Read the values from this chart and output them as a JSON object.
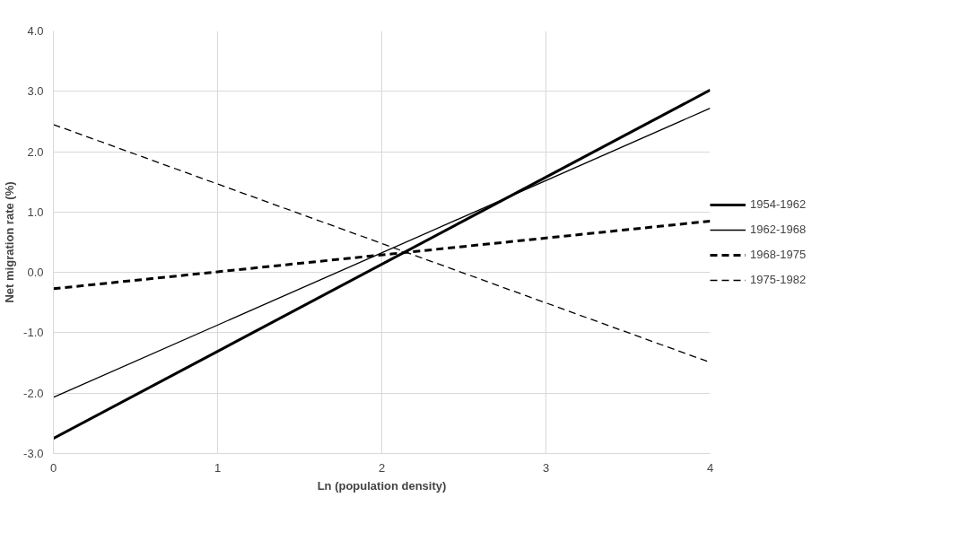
{
  "chart_data": {
    "type": "line",
    "xlabel": "Ln (population density)",
    "ylabel": "Net migration rate (%)",
    "x": [
      0,
      4
    ],
    "series": [
      {
        "name": "1954-1962",
        "color": "#000000",
        "values": [
          -2.75,
          3.02
        ],
        "line_style": "solid"
      },
      {
        "name": "1962-1968",
        "color": "#000000",
        "values": [
          -2.07,
          2.72
        ],
        "line_style": "solid"
      },
      {
        "name": "1968-1975",
        "color": "#000000",
        "values": [
          -0.27,
          0.85
        ],
        "line_style": "dashed"
      },
      {
        "name": "1975-1982",
        "color": "#000000",
        "values": [
          2.45,
          -1.49
        ],
        "line_style": "dashed"
      }
    ],
    "xlim": [
      0,
      4
    ],
    "xticks": [
      0,
      1,
      2,
      3,
      4
    ],
    "ylim": [
      -3,
      4
    ],
    "yticks": [
      {
        "value": -3,
        "label": "-3.0"
      },
      {
        "value": -2,
        "label": "-2.0"
      },
      {
        "value": -1,
        "label": "-1.0"
      },
      {
        "value": 0,
        "label": "0.0"
      },
      {
        "value": 1,
        "label": "1.0"
      },
      {
        "value": 2,
        "label": "2.0"
      },
      {
        "value": 3,
        "label": "3.0"
      },
      {
        "value": 4,
        "label": "4.0"
      }
    ],
    "grid": true,
    "legend": "right",
    "marker": "none"
  }
}
